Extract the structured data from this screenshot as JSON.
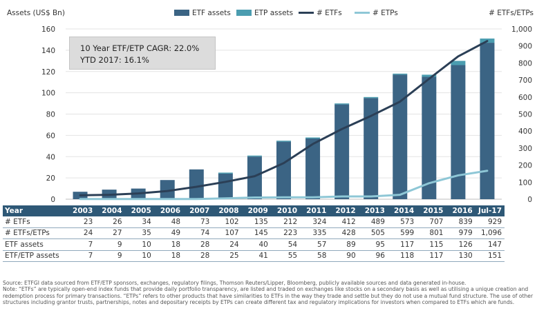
{
  "chart_data": {
    "type": "bar+line",
    "y_left_label": "Assets (US$ Bn)",
    "y_right_label": "# ETFs/ETPs",
    "y_left_range": [
      0,
      160
    ],
    "y_left_ticks": [
      "0",
      "20",
      "40",
      "60",
      "80",
      "100",
      "120",
      "140",
      "160"
    ],
    "y_right_range": [
      0,
      1000
    ],
    "y_right_ticks": [
      "0",
      "100",
      "200",
      "300",
      "400",
      "500",
      "600",
      "700",
      "800",
      "900",
      "1,000"
    ],
    "legend": [
      {
        "name": "ETF assets",
        "type": "bar",
        "color": "#3b6484"
      },
      {
        "name": "ETP assets",
        "type": "bar",
        "color": "#4b9db0"
      },
      {
        "name": "# ETFs",
        "type": "line",
        "color": "#2b3f56"
      },
      {
        "name": "# ETPs",
        "type": "line",
        "color": "#8ec7d6"
      }
    ],
    "categories": [
      "2003",
      "2004",
      "2005",
      "2006",
      "2007",
      "2008",
      "2009",
      "2010",
      "2011",
      "2012",
      "2013",
      "2014",
      "2015",
      "2016",
      "Jul-17"
    ],
    "etf_assets": [
      7,
      9,
      10,
      18,
      28,
      24,
      40,
      54,
      57,
      89,
      95,
      117,
      115,
      126,
      147
    ],
    "etf_etp_assets": [
      7,
      9,
      10,
      18,
      28,
      25,
      41,
      55,
      58,
      90,
      96,
      118,
      117,
      130,
      151
    ],
    "num_etfs": [
      23,
      26,
      34,
      48,
      73,
      102,
      135,
      212,
      324,
      412,
      489,
      573,
      707,
      839,
      929
    ],
    "num_etps": [
      1,
      1,
      1,
      1,
      1,
      5,
      10,
      11,
      11,
      16,
      16,
      26,
      94,
      140,
      167
    ]
  },
  "cagr_box": {
    "line1": "10 Year ETF/ETP CAGR: 22.0%",
    "line2": "YTD 2017: 16.1%"
  },
  "table": {
    "header_label": "Year",
    "rows": [
      {
        "label": "# ETFs",
        "values": [
          "23",
          "26",
          "34",
          "48",
          "73",
          "102",
          "135",
          "212",
          "324",
          "412",
          "489",
          "573",
          "707",
          "839",
          "929"
        ]
      },
      {
        "label": "# ETFs/ETPs",
        "values": [
          "24",
          "27",
          "35",
          "49",
          "74",
          "107",
          "145",
          "223",
          "335",
          "428",
          "505",
          "599",
          "801",
          "979",
          "1,096"
        ]
      },
      {
        "label": "ETF assets",
        "values": [
          "7",
          "9",
          "10",
          "18",
          "28",
          "24",
          "40",
          "54",
          "57",
          "89",
          "95",
          "117",
          "115",
          "126",
          "147"
        ]
      },
      {
        "label": "ETF/ETP assets",
        "values": [
          "7",
          "9",
          "10",
          "18",
          "28",
          "25",
          "41",
          "55",
          "58",
          "90",
          "96",
          "118",
          "117",
          "130",
          "151"
        ]
      }
    ]
  },
  "footnote": {
    "source": "Source: ETFGI data sourced from ETF/ETP sponsors, exchanges, regulatory filings, Thomson Reuters/Lipper, Bloomberg, publicly available sources and data generated in-house.",
    "note": "Note: “ETFs” are typically open-end index funds that provide daily portfolio transparency, are listed and traded on exchanges like stocks on a secondary basis as well as utilising a unique creation and redemption process for primary transactions. “ETPs” refers to other products that have similarities to ETFs in the way they trade and settle but they do not use a mutual fund structure. The use of other structures including grantor trusts, partnerships, notes and depositary receipts by ETPs can create different tax and regulatory implications for investors when compared to ETFs which are funds."
  }
}
